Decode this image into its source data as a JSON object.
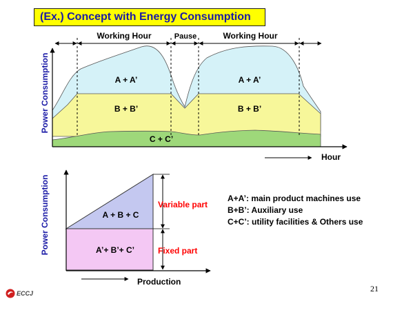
{
  "slide": {
    "title": "(Ex.) Concept with Energy Consumption",
    "page_number": "21",
    "logo_text": "ECCJ"
  },
  "top_diagram": {
    "y_axis_label": "Power Consumption",
    "x_axis_label": "Hour",
    "periods": {
      "working1": "Working Hour",
      "pause": "Pause",
      "working2": "Working Hour"
    },
    "layers": {
      "top1": "A + A’",
      "top2": "A + A’",
      "mid1": "B + B’",
      "mid2": "B + B’",
      "base": "C + C’"
    }
  },
  "bottom_diagram": {
    "y_axis_label": "Power Consumption",
    "x_axis_label": "Production",
    "variable_region_label": "A + B + C",
    "fixed_region_label": "A’+  B’+ C’",
    "variable_part_label": "Variable part",
    "fixed_part_label": "Fixed part"
  },
  "legend": {
    "items": [
      "A+A’: main product machines use",
      "B+B’: Auxiliary use",
      "C+C’: utility facilities & Others use"
    ]
  },
  "colors": {
    "title_bg": "#ffff00",
    "title_text": "#1a1aa6",
    "axis_label": "#1a1aa6",
    "layer_a": "#d5f2f8",
    "layer_b": "#f7f79a",
    "layer_c": "#9ed87a",
    "variable_region": "#c4c8f0",
    "fixed_region": "#f4c8f4",
    "annotation_red": "#ff0000"
  }
}
